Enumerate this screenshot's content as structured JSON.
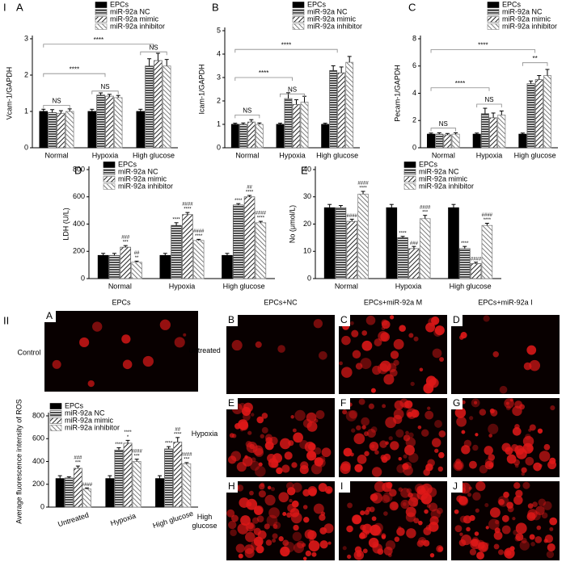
{
  "figure": {
    "part_labels": [
      "I",
      "II"
    ]
  },
  "images": {
    "control_title": "EPCs",
    "control_row": "Control",
    "control_letter": "A",
    "columns": [
      "EPCs+NC",
      "EPCs+miR-92a M",
      "EPCs+miR-92a I"
    ],
    "rows": [
      "Untreated",
      "Hypoxia",
      "High glucose"
    ],
    "letters": [
      [
        "B",
        "C",
        "D"
      ],
      [
        "E",
        "F",
        "G"
      ],
      [
        "H",
        "I",
        "J"
      ]
    ]
  },
  "chart_data": [
    {
      "type": "bar",
      "panel": "A",
      "y_label": "Vcam-1/GAPDH",
      "categories": [
        "Normal",
        "Hypoxia",
        "High glucose"
      ],
      "ylim": [
        0,
        3
      ],
      "yticks": [
        0,
        1,
        2,
        3
      ],
      "legend": "top",
      "series": [
        {
          "name": "EPCs",
          "color": "#000000",
          "hatch": "solid",
          "values": [
            1.0,
            1.0,
            1.0
          ],
          "errors": [
            0.06,
            0.06,
            0.06
          ]
        },
        {
          "name": "miR-92a NC",
          "color": "#555555",
          "hatch": "horizontal",
          "values": [
            0.97,
            1.45,
            2.25
          ],
          "errors": [
            0.08,
            0.06,
            0.2
          ]
        },
        {
          "name": "miR-92a mimic",
          "color": "#666666",
          "hatch": "diagonal",
          "values": [
            0.95,
            1.42,
            2.4
          ],
          "errors": [
            0.07,
            0.05,
            0.2
          ]
        },
        {
          "name": "miR-92a inhibitor",
          "color": "#888888",
          "hatch": "diagonal-light",
          "values": [
            1.0,
            1.38,
            2.25
          ],
          "errors": [
            0.07,
            0.06,
            0.18
          ]
        }
      ],
      "brackets": [
        "****",
        "****",
        "NS",
        "NS",
        "NS"
      ]
    },
    {
      "type": "bar",
      "panel": "B",
      "y_label": "Icam-1/GAPDH",
      "categories": [
        "Normal",
        "Hypoxia",
        "High glucose"
      ],
      "ylim": [
        0,
        5
      ],
      "yticks": [
        0,
        1,
        2,
        3,
        4,
        5
      ],
      "legend": "top",
      "series": [
        {
          "name": "EPCs",
          "color": "#000000",
          "hatch": "solid",
          "values": [
            1.0,
            1.0,
            1.0
          ],
          "errors": [
            0.05,
            0.05,
            0.05
          ]
        },
        {
          "name": "miR-92a NC",
          "color": "#555555",
          "hatch": "horizontal",
          "values": [
            1.0,
            2.1,
            3.3
          ],
          "errors": [
            0.06,
            0.25,
            0.2
          ]
        },
        {
          "name": "miR-92a mimic",
          "color": "#666666",
          "hatch": "diagonal",
          "values": [
            1.1,
            1.85,
            3.2
          ],
          "errors": [
            0.1,
            0.2,
            0.25
          ]
        },
        {
          "name": "miR-92a inhibitor",
          "color": "#888888",
          "hatch": "diagonal-light",
          "values": [
            1.0,
            1.95,
            3.65
          ],
          "errors": [
            0.06,
            0.25,
            0.25
          ]
        }
      ],
      "brackets": [
        "****",
        "****",
        "NS",
        "NS"
      ]
    },
    {
      "type": "bar",
      "panel": "C",
      "y_label": "Pecam-1/GAPDH",
      "categories": [
        "Normal",
        "Hypoxia",
        "High glucose"
      ],
      "ylim": [
        0,
        8
      ],
      "yticks": [
        0,
        2,
        4,
        6,
        8
      ],
      "legend": "top",
      "series": [
        {
          "name": "EPCs",
          "color": "#000000",
          "hatch": "solid",
          "values": [
            1.0,
            1.0,
            1.0
          ],
          "errors": [
            0.08,
            0.08,
            0.08
          ]
        },
        {
          "name": "miR-92a NC",
          "color": "#555555",
          "hatch": "horizontal",
          "values": [
            1.0,
            2.5,
            4.7
          ],
          "errors": [
            0.1,
            0.4,
            0.2
          ]
        },
        {
          "name": "miR-92a mimic",
          "color": "#666666",
          "hatch": "diagonal",
          "values": [
            0.95,
            2.2,
            5.0
          ],
          "errors": [
            0.1,
            0.35,
            0.3
          ]
        },
        {
          "name": "miR-92a inhibitor",
          "color": "#888888",
          "hatch": "diagonal-light",
          "values": [
            1.0,
            2.4,
            5.3
          ],
          "errors": [
            0.1,
            0.3,
            0.45
          ]
        }
      ],
      "brackets": [
        "****",
        "****",
        "NS",
        "NS",
        "**"
      ]
    },
    {
      "type": "bar",
      "panel": "D",
      "y_label": "LDH (U/L)",
      "categories": [
        "Normal",
        "Hypoxia",
        "High glucose"
      ],
      "ylim": [
        0,
        800
      ],
      "yticks": [
        0,
        200,
        400,
        600,
        800
      ],
      "legend": "top",
      "series": [
        {
          "name": "EPCs",
          "color": "#000000",
          "hatch": "solid",
          "values": [
            170,
            170,
            170
          ],
          "errors": [
            15,
            15,
            15
          ],
          "annotations": [
            null,
            null,
            null
          ]
        },
        {
          "name": "miR-92a NC",
          "color": "#555555",
          "hatch": "horizontal",
          "values": [
            170,
            390,
            540
          ],
          "errors": [
            15,
            20,
            10
          ],
          "annotations": [
            null,
            [
              "****"
            ],
            [
              "****"
            ]
          ]
        },
        {
          "name": "miR-92a mimic",
          "color": "#666666",
          "hatch": "diagonal",
          "values": [
            230,
            470,
            600
          ],
          "errors": [
            12,
            15,
            10
          ],
          "annotations": [
            [
              "###",
              "***"
            ],
            [
              "####",
              "****"
            ],
            [
              "##",
              "****"
            ]
          ]
        },
        {
          "name": "miR-92a inhibitor",
          "color": "#888888",
          "hatch": "diagonal-light",
          "values": [
            120,
            280,
            410
          ],
          "errors": [
            8,
            8,
            10
          ],
          "annotations": [
            [
              "##",
              "**"
            ],
            [
              "####",
              "****"
            ],
            [
              "####",
              "****"
            ]
          ]
        }
      ]
    },
    {
      "type": "bar",
      "panel": "E",
      "y_label": "No (μmol/L)",
      "categories": [
        "Normal",
        "Hypoxia",
        "High glucose"
      ],
      "ylim": [
        0,
        40
      ],
      "yticks": [
        0,
        10,
        20,
        30,
        40
      ],
      "legend": "top",
      "series": [
        {
          "name": "EPCs",
          "color": "#000000",
          "hatch": "solid",
          "values": [
            26,
            26,
            26
          ],
          "errors": [
            1.2,
            1.2,
            1.2
          ],
          "annotations": [
            null,
            null,
            null
          ]
        },
        {
          "name": "miR-92a NC",
          "color": "#555555",
          "hatch": "horizontal",
          "values": [
            26,
            15,
            11
          ],
          "errors": [
            0.8,
            0.5,
            0.8
          ],
          "annotations": [
            null,
            [
              "****"
            ],
            [
              "****"
            ]
          ]
        },
        {
          "name": "miR-92a mimic",
          "color": "#666666",
          "hatch": "diagonal",
          "values": [
            21,
            11,
            5.5
          ],
          "errors": [
            0.8,
            0.8,
            0.5
          ],
          "annotations": [
            [
              "####"
            ],
            [
              "###"
            ],
            [
              "####"
            ]
          ]
        },
        {
          "name": "miR-92a inhibitor",
          "color": "#888888",
          "hatch": "diagonal-light",
          "values": [
            31,
            22,
            19.5
          ],
          "errors": [
            1,
            1.2,
            0.8
          ],
          "annotations": [
            [
              "####",
              "****"
            ],
            [
              "####",
              "***"
            ],
            [
              "####",
              "****"
            ]
          ]
        }
      ]
    },
    {
      "type": "bar",
      "y_label": "Average fluorescence intensity of ROS",
      "categories": [
        "Untreated",
        "Hypoxia",
        "High glucose"
      ],
      "ylim": [
        0,
        800
      ],
      "yticks": [
        0,
        200,
        400,
        600,
        800
      ],
      "legend": "top",
      "series": [
        {
          "name": "EPCs",
          "color": "#000000",
          "hatch": "solid",
          "values": [
            250,
            250,
            250
          ],
          "errors": [
            25,
            25,
            25
          ],
          "annotations": [
            null,
            null,
            null
          ]
        },
        {
          "name": "miR-92a NC",
          "color": "#555555",
          "hatch": "horizontal",
          "values": [
            255,
            500,
            510
          ],
          "errors": [
            10,
            20,
            20
          ],
          "annotations": [
            null,
            [
              "****"
            ],
            [
              "****"
            ]
          ]
        },
        {
          "name": "miR-92a mimic",
          "color": "#666666",
          "hatch": "diagonal",
          "values": [
            340,
            560,
            570
          ],
          "errors": [
            20,
            25,
            40
          ],
          "annotations": [
            [
              "###",
              "***"
            ],
            [
              "****",
              "*"
            ],
            [
              "##",
              "****"
            ]
          ]
        },
        {
          "name": "miR-92a inhibitor",
          "color": "#888888",
          "hatch": "diagonal-light",
          "values": [
            160,
            400,
            380
          ],
          "errors": [
            8,
            20,
            10
          ],
          "annotations": [
            [
              "####"
            ],
            [
              "####",
              "***"
            ],
            [
              "####",
              "***"
            ]
          ]
        }
      ]
    }
  ]
}
